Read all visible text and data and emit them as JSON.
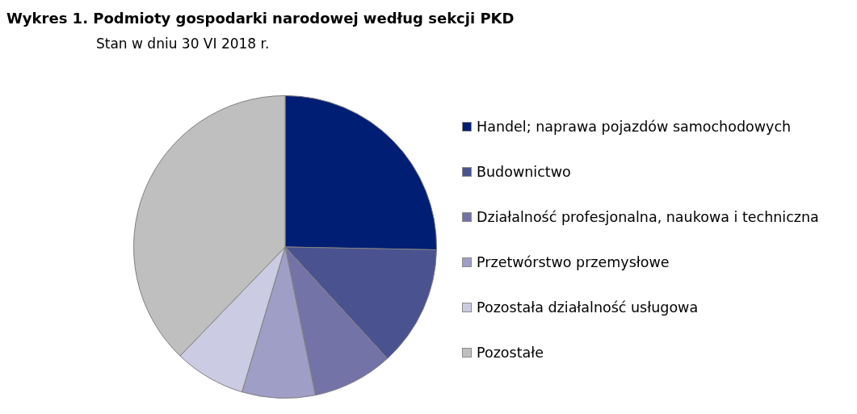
{
  "chart_data": {
    "type": "pie",
    "title": "Wykres 1. Podmioty gospodarki narodowej według sekcji PKD",
    "subtitle": "Stan w dniu 30 VI 2018 r.",
    "categories": [
      "Handel; naprawa pojazdów samochodowych",
      "Budownictwo",
      "Działalność profesjonalna, naukowa i techniczna",
      "Przetwórstwo przemysłowe",
      "Pozostała działalność usługowa",
      "Pozostałe"
    ],
    "values": [
      25.3,
      12.9,
      8.6,
      7.8,
      7.6,
      37.8
    ],
    "colors": [
      "#001e73",
      "#4b5290",
      "#7373a8",
      "#9e9ec6",
      "#cbcbe3",
      "#bfbfbf"
    ],
    "legend": "right"
  }
}
